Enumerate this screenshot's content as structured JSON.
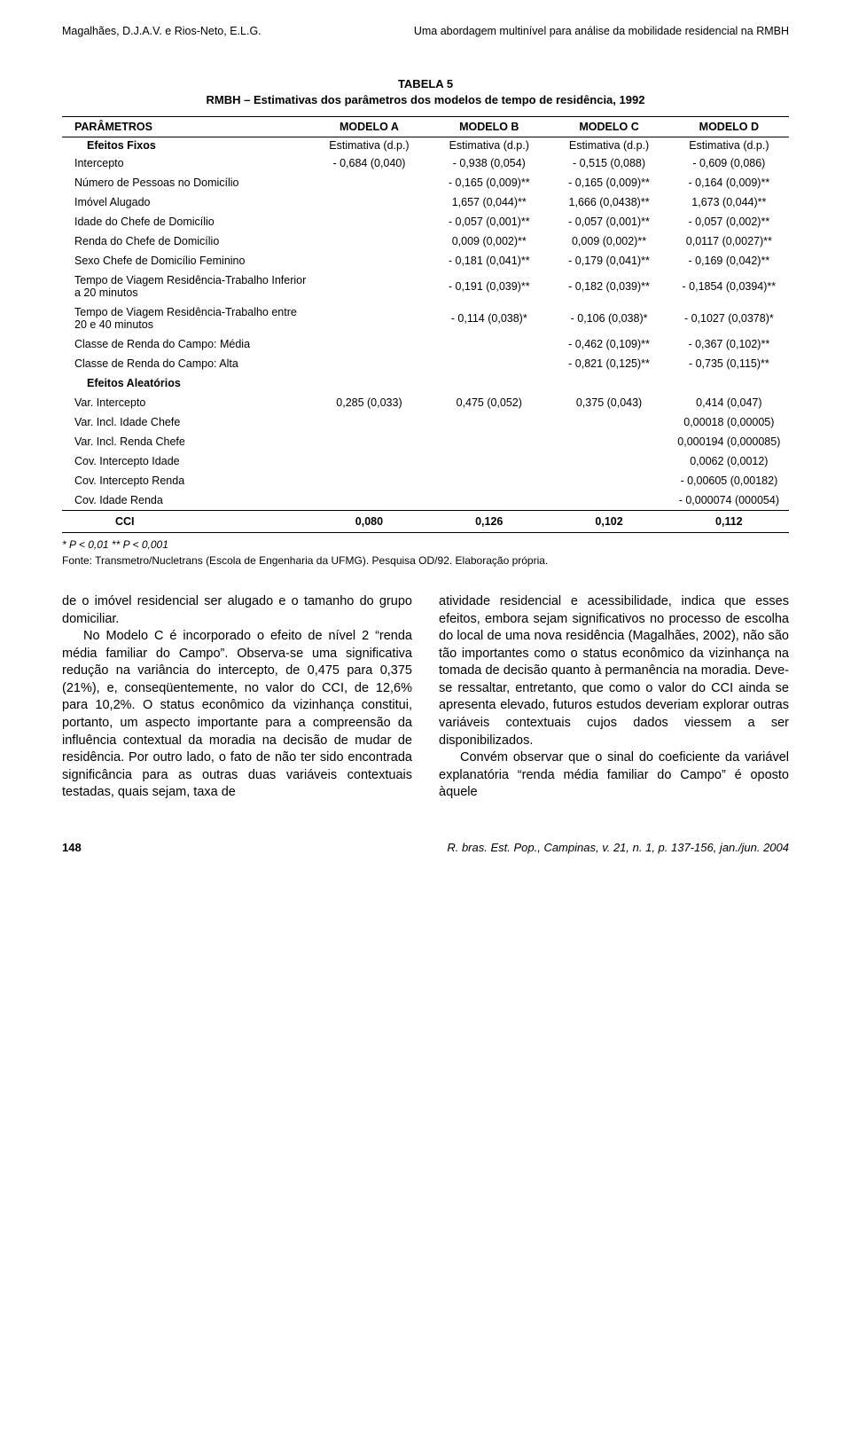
{
  "running_head": {
    "left": "Magalhães, D.J.A.V. e Rios-Neto, E.L.G.",
    "right": "Uma abordagem multinível para análise da mobilidade residencial na RMBH"
  },
  "table": {
    "caption_line1": "TABELA 5",
    "caption_line2": "RMBH – Estimativas dos parâmetros dos modelos de tempo de residência, 1992",
    "columns": [
      "PARÂMETROS",
      "MODELO A",
      "MODELO B",
      "MODELO C",
      "MODELO D"
    ],
    "section_fixed_label": "Efeitos Fixos",
    "estimativa_label": "Estimativa (d.p.)",
    "rows_fixed": [
      {
        "label": "Intercepto",
        "a": "- 0,684 (0,040)",
        "b": "- 0,938 (0,054)",
        "c": "- 0,515 (0,088)",
        "d": "- 0,609 (0,086)"
      },
      {
        "label": "Número de Pessoas no Domicílio",
        "a": "",
        "b": "- 0,165 (0,009)**",
        "c": "- 0,165 (0,009)**",
        "d": "- 0,164 (0,009)**"
      },
      {
        "label": "Imóvel Alugado",
        "a": "",
        "b": "1,657 (0,044)**",
        "c": "1,666 (0,0438)**",
        "d": "1,673 (0,044)**"
      },
      {
        "label": "Idade do Chefe de Domicílio",
        "a": "",
        "b": "- 0,057 (0,001)**",
        "c": "- 0,057 (0,001)**",
        "d": "- 0,057 (0,002)**"
      },
      {
        "label": "Renda do Chefe de Domicílio",
        "a": "",
        "b": "0,009 (0,002)**",
        "c": "0,009 (0,002)**",
        "d": "0,0117 (0,0027)**"
      },
      {
        "label": "Sexo Chefe de Domicílio Feminino",
        "a": "",
        "b": "- 0,181 (0,041)**",
        "c": "- 0,179 (0,041)**",
        "d": "- 0,169 (0,042)**"
      },
      {
        "label": "Tempo de Viagem Residência-Trabalho Inferior a 20 minutos",
        "a": "",
        "b": "- 0,191 (0,039)**",
        "c": "- 0,182 (0,039)**",
        "d": "- 0,1854 (0,0394)**"
      },
      {
        "label": "Tempo de Viagem Residência-Trabalho entre 20 e 40 minutos",
        "a": "",
        "b": "- 0,114 (0,038)*",
        "c": "- 0,106 (0,038)*",
        "d": "- 0,1027 (0,0378)*"
      },
      {
        "label": "Classe de Renda do Campo: Média",
        "a": "",
        "b": "",
        "c": "- 0,462 (0,109)**",
        "d": "- 0,367 (0,102)**"
      },
      {
        "label": "Classe de Renda do Campo: Alta",
        "a": "",
        "b": "",
        "c": "- 0,821 (0,125)**",
        "d": "- 0,735 (0,115)**"
      }
    ],
    "section_random_label": "Efeitos Aleatórios",
    "rows_random": [
      {
        "label": "Var. Intercepto",
        "a": "0,285 (0,033)",
        "b": "0,475 (0,052)",
        "c": "0,375 (0,043)",
        "d": "0,414 (0,047)"
      },
      {
        "label": "Var. Incl. Idade Chefe",
        "a": "",
        "b": "",
        "c": "",
        "d": "0,00018 (0,00005)"
      },
      {
        "label": "Var. Incl. Renda Chefe",
        "a": "",
        "b": "",
        "c": "",
        "d": "0,000194 (0,000085)"
      },
      {
        "label": "Cov. Intercepto Idade",
        "a": "",
        "b": "",
        "c": "",
        "d": "0,0062 (0,0012)"
      },
      {
        "label": "Cov. Intercepto Renda",
        "a": "",
        "b": "",
        "c": "",
        "d": "- 0,00605 (0,00182)"
      },
      {
        "label": "Cov. Idade Renda",
        "a": "",
        "b": "",
        "c": "",
        "d": "- 0,000074 (000054)"
      }
    ],
    "cci": {
      "label": "CCI",
      "a": "0,080",
      "b": "0,126",
      "c": "0,102",
      "d": "0,112"
    },
    "sig_note": "* P < 0,01 ** P < 0,001",
    "source": "Fonte: Transmetro/Nucletrans (Escola de Engenharia da UFMG). Pesquisa OD/92. Elaboração própria."
  },
  "body": {
    "left": {
      "p1": "de o imóvel residencial ser alugado e o tamanho do grupo domiciliar.",
      "p2": "No Modelo C é incorporado o efeito de nível 2 “renda média familiar do Campo”. Observa-se uma significativa redução na variância do intercepto, de 0,475 para 0,375 (21%), e, conseqüentemente, no valor do CCI, de 12,6% para 10,2%. O status econômico da vizinhança constitui, portanto, um aspecto importante para a compreensão da influência contextual da moradia na decisão de mudar de residência. Por outro lado, o fato de não ter sido encontrada significância para as outras duas variáveis contextuais testadas, quais sejam, taxa de"
    },
    "right": {
      "p1": "atividade residencial e acessibilidade, indica que esses efeitos, embora sejam significativos no processo de escolha do local de uma nova residência (Magalhães, 2002), não são tão importantes como o status econômico da vizinhança na tomada de decisão quanto à permanência na moradia. Deve-se ressaltar, entretanto, que como o valor do CCI ainda se apresenta elevado, futuros estudos deveriam explorar outras variáveis contextuais cujos dados viessem a ser disponibilizados.",
      "p2": "Convém observar que o sinal do coeficiente da variável explanatória “renda média familiar do Campo” é oposto àquele"
    }
  },
  "footer": {
    "page_number": "148",
    "journal": "R. bras. Est. Pop., Campinas, v. 21, n. 1, p. 137-156, jan./jun. 2004"
  }
}
